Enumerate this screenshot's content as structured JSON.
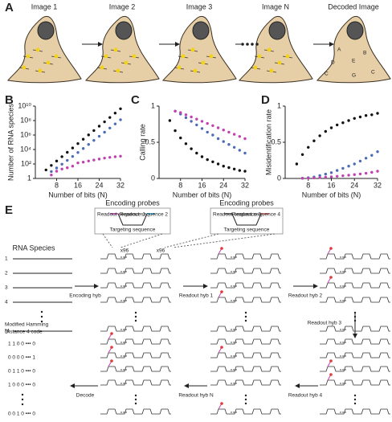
{
  "panel_labels": [
    "A",
    "B",
    "C",
    "D",
    "E"
  ],
  "panel_a": {
    "images": [
      "Image 1",
      "Image 2",
      "Image 3",
      "Image N",
      "Decoded Image"
    ],
    "decoded_letters": [
      "A",
      "B",
      "D",
      "E",
      "C",
      "G",
      "C"
    ]
  },
  "chart_data": [
    {
      "type": "scatter",
      "y_label": "Number of RNA species",
      "x_label": "Number of bits (N)",
      "log_y": true,
      "x": [
        4,
        6,
        8,
        10,
        12,
        14,
        16,
        18,
        20,
        22,
        24,
        26,
        28,
        30,
        32
      ],
      "xlim": [
        0,
        32
      ],
      "xticks": [
        8,
        16,
        24,
        32
      ],
      "ylim": [
        1,
        10000000000
      ],
      "yticks": [
        1,
        {
          "value": 100,
          "label": "10²"
        },
        {
          "value": 10000,
          "label": "10⁴"
        },
        {
          "value": 1000000,
          "label": "10⁶"
        },
        {
          "value": 100000000,
          "label": "10⁸"
        },
        {
          "value": 10000000000,
          "label": "10¹⁰"
        }
      ],
      "series": [
        {
          "color": "#111111",
          "values": [
            15,
            63,
            255,
            1023,
            4095,
            16383,
            65535,
            262143,
            1048575,
            4194303,
            16777215,
            67108863,
            268435455,
            1073741823,
            4294967295
          ]
        },
        {
          "color": "#4a6bb5",
          "values": [
            null,
            9,
            28,
            93,
            315,
            1092,
            3855,
            13797,
            49932,
            182361,
            671088,
            2485513,
            9256396,
            34636833,
            130150524
          ]
        },
        {
          "color": "#c23fb0",
          "values": [
            null,
            3,
            10,
            20,
            30,
            50,
            140,
            180,
            260,
            350,
            480,
            650,
            820,
            1000,
            1200
          ]
        }
      ]
    },
    {
      "type": "scatter",
      "y_label": "Calling rate",
      "x_label": "Number of bits (N)",
      "x": [
        4,
        6,
        8,
        10,
        12,
        14,
        16,
        18,
        20,
        22,
        24,
        26,
        28,
        30,
        32
      ],
      "xlim": [
        0,
        32
      ],
      "xticks": [
        8,
        16,
        24,
        32
      ],
      "ylim": [
        0,
        1
      ],
      "yticks": [
        0,
        0.5,
        1
      ],
      "series": [
        {
          "color": "#111111",
          "values": [
            0.8,
            0.66,
            0.56,
            0.48,
            0.41,
            0.35,
            0.3,
            0.26,
            0.23,
            0.2,
            0.17,
            0.15,
            0.13,
            0.11,
            0.1
          ]
        },
        {
          "color": "#4a6bb5",
          "values": [
            null,
            0.93,
            0.89,
            0.84,
            0.79,
            0.74,
            0.69,
            0.64,
            0.6,
            0.55,
            0.51,
            0.47,
            0.43,
            0.39,
            0.35
          ]
        },
        {
          "color": "#c23fb0",
          "values": [
            null,
            0.93,
            0.91,
            0.88,
            0.85,
            0.82,
            0.79,
            0.76,
            0.73,
            0.7,
            0.67,
            0.64,
            0.61,
            0.58,
            0.55
          ]
        }
      ]
    },
    {
      "type": "scatter",
      "y_label": "Misidentification rate",
      "x_label": "Number of bits (N)",
      "x": [
        4,
        6,
        8,
        10,
        12,
        14,
        16,
        18,
        20,
        22,
        24,
        26,
        28,
        30,
        32
      ],
      "xlim": [
        0,
        32
      ],
      "xticks": [
        8,
        16,
        24,
        32
      ],
      "ylim": [
        0,
        1
      ],
      "yticks": [
        0,
        0.5,
        1
      ],
      "series": [
        {
          "color": "#111111",
          "values": [
            0.2,
            0.33,
            0.43,
            0.52,
            0.59,
            0.65,
            0.7,
            0.74,
            0.77,
            0.8,
            0.83,
            0.85,
            0.87,
            0.88,
            0.9
          ]
        },
        {
          "color": "#4a6bb5",
          "values": [
            null,
            0.003,
            0.01,
            0.02,
            0.04,
            0.06,
            0.08,
            0.11,
            0.14,
            0.17,
            0.2,
            0.24,
            0.28,
            0.32,
            0.37
          ]
        },
        {
          "color": "#c23fb0",
          "values": [
            null,
            0.002,
            0.004,
            0.008,
            0.012,
            0.017,
            0.023,
            0.03,
            0.037,
            0.045,
            0.053,
            0.062,
            0.072,
            0.085,
            0.1
          ]
        }
      ]
    }
  ],
  "panel_e": {
    "probes": [
      {
        "title": "Encoding probes",
        "readout_left": "Readout sequence 1",
        "readout_right": "Readout sequence 2",
        "targeting": "Targeting sequence"
      },
      {
        "title": "Encoding probes",
        "readout_left": "Readout sequence 3",
        "readout_right": "Readout sequence 4",
        "targeting": "Targeting sequence"
      }
    ],
    "copies": [
      "x96",
      "x96"
    ],
    "species_title": "RNA Species",
    "species_rows": [
      "1",
      "2",
      "3",
      "4",
      "M"
    ],
    "steps": [
      "Encoding hyb",
      "Readout hyb 1",
      "Readout hyb 2",
      "Readout hyb 3",
      "Readout hyb 4",
      "Readout hyb N",
      "Decode"
    ],
    "code_title": [
      "Modified Hamming",
      "Distance 4 code"
    ],
    "codes": [
      "1 1 0 0 ••• 0",
      "0 0 0 0 ••• 1",
      "0 1 1 0 ••• 0",
      "1 0 0 0 ••• 0",
      "0 0 1 0 ••• 0"
    ]
  }
}
